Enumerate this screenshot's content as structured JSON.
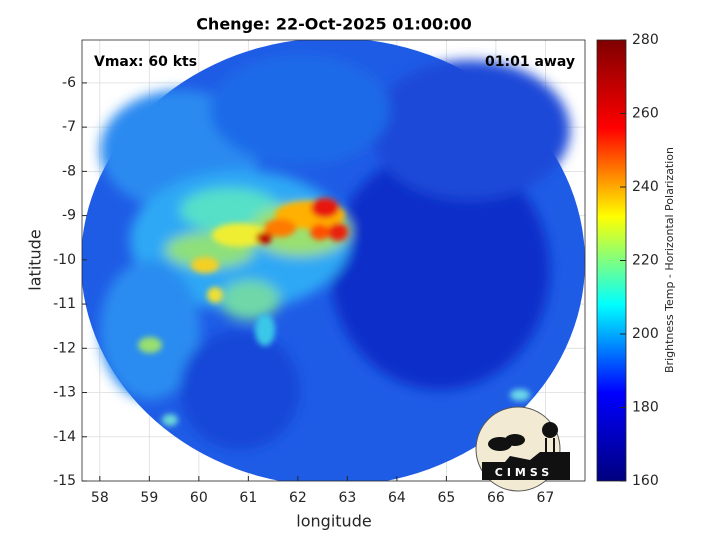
{
  "chart_data": {
    "type": "image-map",
    "title": "Chenge: 22-Oct-2025 01:00:00",
    "annotations": [
      "Vmax: 60 kts",
      "01:01 away"
    ],
    "xlabel": "longitude",
    "ylabel": "latitude",
    "xlim": [
      57.64,
      67.8
    ],
    "xticks": [
      58,
      59,
      60,
      61,
      62,
      63,
      64,
      65,
      66,
      67
    ],
    "ylim": [
      -15,
      -5.03
    ],
    "yticks": [
      -15,
      -14,
      -13,
      -12,
      -11,
      -10,
      -9,
      -8,
      -7,
      -6
    ],
    "grid": true,
    "colorbar": {
      "label": "Brightness Temp - Horizontal Polarization",
      "colormap": "jet",
      "clim": [
        160,
        280
      ],
      "ticks": [
        160,
        180,
        200,
        220,
        240,
        260,
        280
      ]
    },
    "logo": "CIMSS"
  }
}
